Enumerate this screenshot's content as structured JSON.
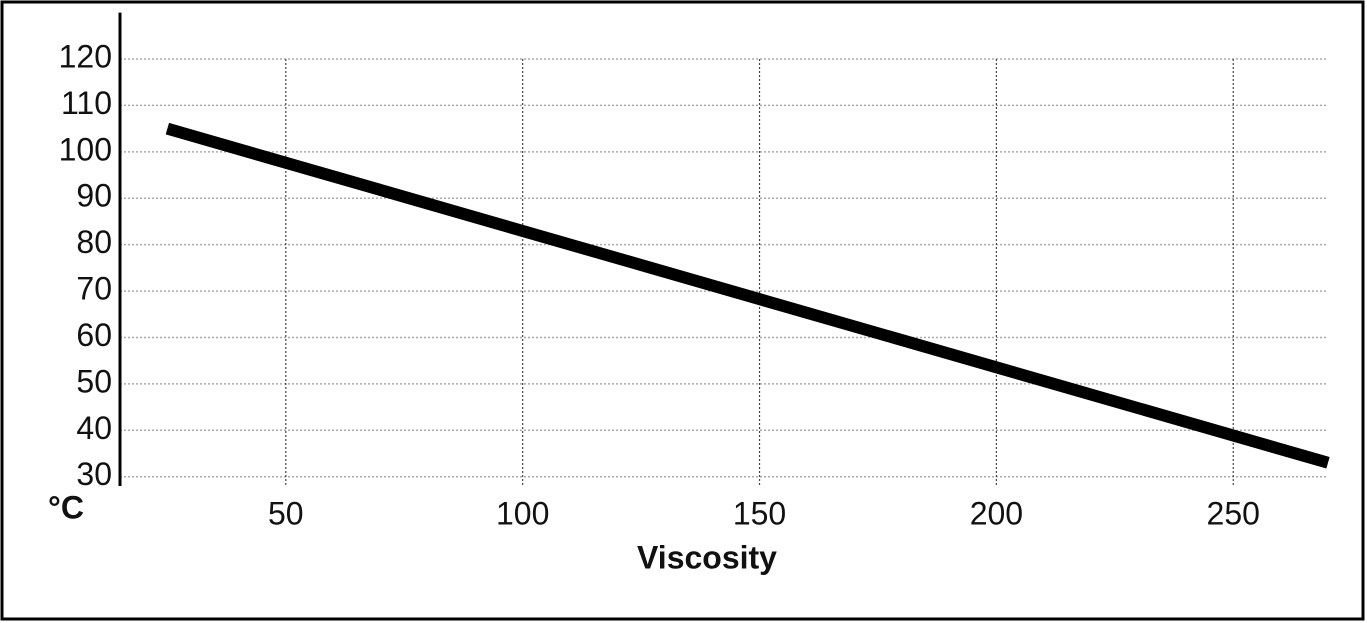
{
  "chart_data": {
    "type": "line",
    "x_label": "Viscosity",
    "y_label": "°C",
    "x": [
      25,
      270
    ],
    "series": [
      {
        "name": null,
        "color": "#000000",
        "values": [
          105,
          33
        ]
      }
    ],
    "xlim": [
      15,
      270
    ],
    "xticks": [
      50,
      100,
      150,
      200,
      250
    ],
    "ylim": [
      28,
      130
    ],
    "yticks": [
      30,
      40,
      50,
      60,
      70,
      80,
      90,
      100,
      110,
      120
    ],
    "grid": true
  }
}
